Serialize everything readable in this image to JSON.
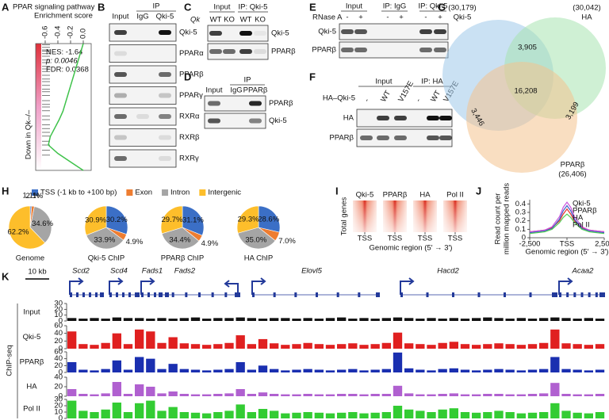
{
  "A": {
    "label": "A",
    "title": "PPAR signaling pathway",
    "score_label": "Enrichment score",
    "ticks": [
      -0.6,
      -0.4,
      -0.2,
      {
        "value": 0,
        "label": "0.0"
      }
    ],
    "stats": [
      "NES: -1.64",
      "p: 0.0046",
      "FDR: 0.0368"
    ],
    "side_label": "Down in Qk–/–",
    "curve": [
      0,
      -0.04,
      -0.08,
      -0.12,
      -0.16,
      -0.2,
      -0.24,
      -0.28,
      -0.32,
      -0.38,
      -0.45,
      -0.52,
      -0.55,
      -0.4,
      -0.2,
      0
    ],
    "hits": [
      0.01,
      0.03,
      0.05,
      0.06,
      0.08,
      0.1,
      0.13,
      0.15,
      0.18,
      0.2,
      0.22,
      0.25,
      0.28,
      0.3,
      0.33,
      0.36,
      0.38,
      0.41,
      0.45,
      0.48,
      0.5,
      0.53,
      0.57,
      0.6,
      0.64,
      0.67,
      0.7,
      0.73,
      0.77,
      0.8,
      0.84,
      0.88
    ]
  },
  "B": {
    "label": "B",
    "group": "IP",
    "lanes": [
      "Input",
      "IgG",
      "Qki-5"
    ],
    "rows": [
      "Qki-5",
      "PPARα",
      "PPARβ",
      "PPARγ",
      "RXRα",
      "RXRβ",
      "RXRγ"
    ],
    "bands": [
      [
        0.8,
        0,
        1
      ],
      [
        0.1,
        0,
        0
      ],
      [
        0.7,
        0,
        0.6
      ],
      [
        0.3,
        0,
        0.2
      ],
      [
        0.6,
        0.1,
        0.5
      ],
      [
        0.2,
        0,
        0.1
      ],
      [
        0.6,
        0,
        0.1
      ]
    ]
  },
  "C": {
    "label": "C",
    "genotype_label": "Qk",
    "groups": [
      "Input",
      "IP: Qki-5"
    ],
    "lanes": [
      "WT",
      "KO",
      "WT",
      "KO"
    ],
    "rows": [
      "Qki-5",
      "PPARβ"
    ],
    "bands": [
      [
        0.8,
        0,
        1,
        0.05
      ],
      [
        0.6,
        0.6,
        0.8,
        0.1
      ]
    ]
  },
  "D": {
    "label": "D",
    "groups": [
      "IP"
    ],
    "lanes": [
      "Input",
      "IgG",
      "PPARβ"
    ],
    "rows": [
      "PPARβ",
      "Qki-5"
    ],
    "bands": [
      [
        0.6,
        0,
        0.9
      ],
      [
        0.7,
        0,
        0.5
      ]
    ]
  },
  "E": {
    "label": "E",
    "treatment": "RNase A",
    "groups": [
      "Input",
      "IP: IgG",
      "IP: Qki-5"
    ],
    "lanes": [
      "-",
      "+",
      "-",
      "+",
      "-",
      "+"
    ],
    "rows": [
      "Qki-5",
      "PPARβ"
    ],
    "bands": [
      [
        0.7,
        0.7,
        0,
        0,
        0.8,
        0.8
      ],
      [
        0.6,
        0.6,
        0,
        0,
        0.6,
        0.6
      ]
    ]
  },
  "F": {
    "label": "F",
    "construct": "HA–Qki-5",
    "groups": [
      "Input",
      "IP: HA"
    ],
    "lanes": [
      "-",
      "WT",
      "V157E",
      "-",
      "WT",
      "V157E"
    ],
    "rows": [
      "HA",
      "PPARβ"
    ],
    "bands": [
      [
        0,
        0.8,
        0.8,
        0,
        1,
        1
      ],
      [
        0.6,
        0.6,
        0.6,
        0,
        0.7,
        0.7
      ]
    ]
  },
  "G": {
    "label": "G",
    "sets": [
      {
        "name": "Qki-5",
        "total": {
          "value": 30179,
          "label": "(30,179)"
        },
        "color": "#2f44b8"
      },
      {
        "name": "HA",
        "total": {
          "value": 30042,
          "label": "(30,042)"
        },
        "color": "#36a84c"
      },
      {
        "name": "PPARβ",
        "total": {
          "value": 26406,
          "label": "(26,406)"
        },
        "color": "#e0892a"
      }
    ],
    "overlaps": [
      {
        "value": 3905,
        "label": "3,905"
      },
      {
        "value": 16208,
        "label": "16,208"
      },
      {
        "value": 3446,
        "label": "3,446"
      },
      {
        "value": 3199,
        "label": "3,199"
      }
    ]
  },
  "H": {
    "label": "H",
    "legend": [
      "TSS (-1 kb to +100 bp)",
      "Exon",
      "Intron",
      "Intergenic"
    ],
    "colors": [
      "#3b6fc6",
      "#ee7d31",
      "#a5a5a5",
      "#fdbe2b"
    ],
    "pies": [
      {
        "name": "Genome",
        "values": [
          1.1,
          2.1,
          34.6,
          62.2
        ],
        "value_labels": [
          "1.1%",
          "2.1%",
          "34.6%",
          "62.2%"
        ]
      },
      {
        "name": "Qki-5 ChIP",
        "values": [
          30.2,
          4.9,
          33.9,
          30.9
        ],
        "value_labels": [
          "30.2%",
          "4.9%",
          "33.9%",
          "30.9%"
        ]
      },
      {
        "name": "PPARβ ChIP",
        "values": [
          31.1,
          4.9,
          34.4,
          29.7
        ],
        "value_labels": [
          "31.1%",
          "4.9%",
          "34.4%",
          "29.7%"
        ]
      },
      {
        "name": "HA ChIP",
        "values": [
          28.6,
          7.0,
          35.0,
          29.3
        ],
        "value_labels": [
          "28.6%",
          "7.0%",
          "35.0%",
          "29.3%"
        ]
      }
    ]
  },
  "I": {
    "label": "I",
    "titles": [
      "Qki-5",
      "PPARβ",
      "HA",
      "Pol II"
    ],
    "tss": "TSS",
    "ylabel": "Total genes",
    "xlabel": "Genomic region (5′ → 3′)"
  },
  "J": {
    "label": "J",
    "ylabel": [
      "Read count per",
      "million mapped reads"
    ],
    "xlabel": "Genomic region (5′ → 3′)",
    "xlim": [
      -2500,
      2500
    ],
    "ylim": [
      0,
      0.45
    ],
    "yticks": [
      0,
      0.1,
      0.2,
      0.3,
      0.4
    ],
    "xticks": [
      {
        "value": -2500,
        "label": "-2,500"
      },
      {
        "value": 0,
        "label": "TSS"
      },
      {
        "value": 2500,
        "label": "2,500"
      }
    ],
    "x": [
      -2500,
      -2000,
      -1500,
      -1000,
      -500,
      -250,
      0,
      250,
      500,
      1000,
      1500,
      2000,
      2500
    ],
    "series": [
      {
        "name": "Qki-5",
        "color": "#e8322c",
        "values": [
          0.07,
          0.08,
          0.09,
          0.12,
          0.2,
          0.28,
          0.34,
          0.28,
          0.2,
          0.12,
          0.09,
          0.08,
          0.07
        ]
      },
      {
        "name": "PPARβ",
        "color": "#3c5fc8",
        "values": [
          0.06,
          0.07,
          0.08,
          0.11,
          0.22,
          0.32,
          0.38,
          0.32,
          0.22,
          0.11,
          0.08,
          0.07,
          0.06
        ]
      },
      {
        "name": "HA",
        "color": "#cc55dd",
        "values": [
          0.07,
          0.08,
          0.09,
          0.13,
          0.25,
          0.36,
          0.42,
          0.36,
          0.25,
          0.13,
          0.09,
          0.08,
          0.07
        ]
      },
      {
        "name": "Pol II",
        "color": "#55cc55",
        "values": [
          0.05,
          0.06,
          0.07,
          0.1,
          0.18,
          0.24,
          0.28,
          0.24,
          0.18,
          0.1,
          0.07,
          0.06,
          0.05
        ]
      }
    ]
  },
  "K": {
    "label": "K",
    "scale": "10 kb",
    "side_label": "ChIP-seq",
    "genes": [
      "Scd2",
      "Scd4",
      "Fads1",
      "Fads2",
      "Elovl5",
      "Hacd2",
      "Acaa2"
    ],
    "tracks": [
      {
        "name": "Input",
        "color": "#111111",
        "ylim": [
          0,
          30
        ],
        "yticks": [
          0,
          10,
          20,
          30
        ],
        "values": [
          5,
          4,
          5,
          4,
          6,
          5,
          5,
          4,
          5,
          4,
          5,
          6,
          4,
          5,
          5,
          6,
          5,
          4,
          5,
          5,
          4,
          5,
          4,
          5,
          6,
          4,
          5,
          4,
          5,
          6,
          5,
          4,
          5,
          4,
          5,
          4,
          5,
          6,
          5,
          4,
          5,
          4,
          5,
          6,
          5,
          4,
          5,
          4
        ]
      },
      {
        "name": "Qki-5",
        "color": "#e02020",
        "ylim": [
          0,
          60
        ],
        "yticks": [
          0,
          20,
          40,
          60
        ],
        "values": [
          45,
          12,
          10,
          15,
          40,
          12,
          50,
          45,
          15,
          30,
          14,
          12,
          10,
          12,
          15,
          35,
          12,
          25,
          14,
          10,
          12,
          15,
          12,
          10,
          12,
          14,
          10,
          12,
          15,
          42,
          14,
          12,
          10,
          15,
          18,
          12,
          10,
          12,
          14,
          12,
          10,
          12,
          15,
          50,
          14,
          12,
          10,
          12
        ]
      },
      {
        "name": "PPARβ",
        "color": "#1a2fb0",
        "ylim": [
          0,
          60
        ],
        "yticks": [
          0,
          20,
          40,
          60
        ],
        "values": [
          30,
          8,
          6,
          10,
          35,
          8,
          45,
          40,
          10,
          25,
          10,
          8,
          6,
          8,
          10,
          30,
          8,
          20,
          10,
          6,
          8,
          10,
          8,
          6,
          8,
          10,
          6,
          8,
          10,
          58,
          12,
          8,
          6,
          10,
          12,
          8,
          6,
          8,
          10,
          8,
          6,
          8,
          10,
          45,
          10,
          8,
          6,
          8
        ]
      },
      {
        "name": "HA",
        "color": "#b060d0",
        "ylim": [
          0,
          40
        ],
        "yticks": [
          0,
          20,
          40
        ],
        "values": [
          15,
          5,
          4,
          6,
          30,
          5,
          25,
          20,
          6,
          10,
          5,
          4,
          4,
          5,
          6,
          15,
          5,
          8,
          5,
          4,
          4,
          5,
          4,
          4,
          5,
          5,
          4,
          5,
          5,
          22,
          6,
          4,
          4,
          5,
          6,
          4,
          4,
          5,
          5,
          4,
          4,
          5,
          6,
          28,
          5,
          4,
          4,
          5
        ]
      },
      {
        "name": "Pol II",
        "color": "#33cc33",
        "ylim": [
          0,
          30
        ],
        "yticks": [
          0,
          10,
          20,
          30
        ],
        "values": [
          28,
          12,
          10,
          14,
          25,
          10,
          24,
          28,
          12,
          18,
          10,
          9,
          8,
          10,
          12,
          22,
          10,
          15,
          12,
          8,
          9,
          10,
          9,
          8,
          9,
          10,
          8,
          9,
          10,
          20,
          14,
          12,
          10,
          14,
          16,
          10,
          9,
          10,
          12,
          10,
          8,
          9,
          10,
          24,
          12,
          9,
          8,
          10
        ]
      }
    ]
  }
}
